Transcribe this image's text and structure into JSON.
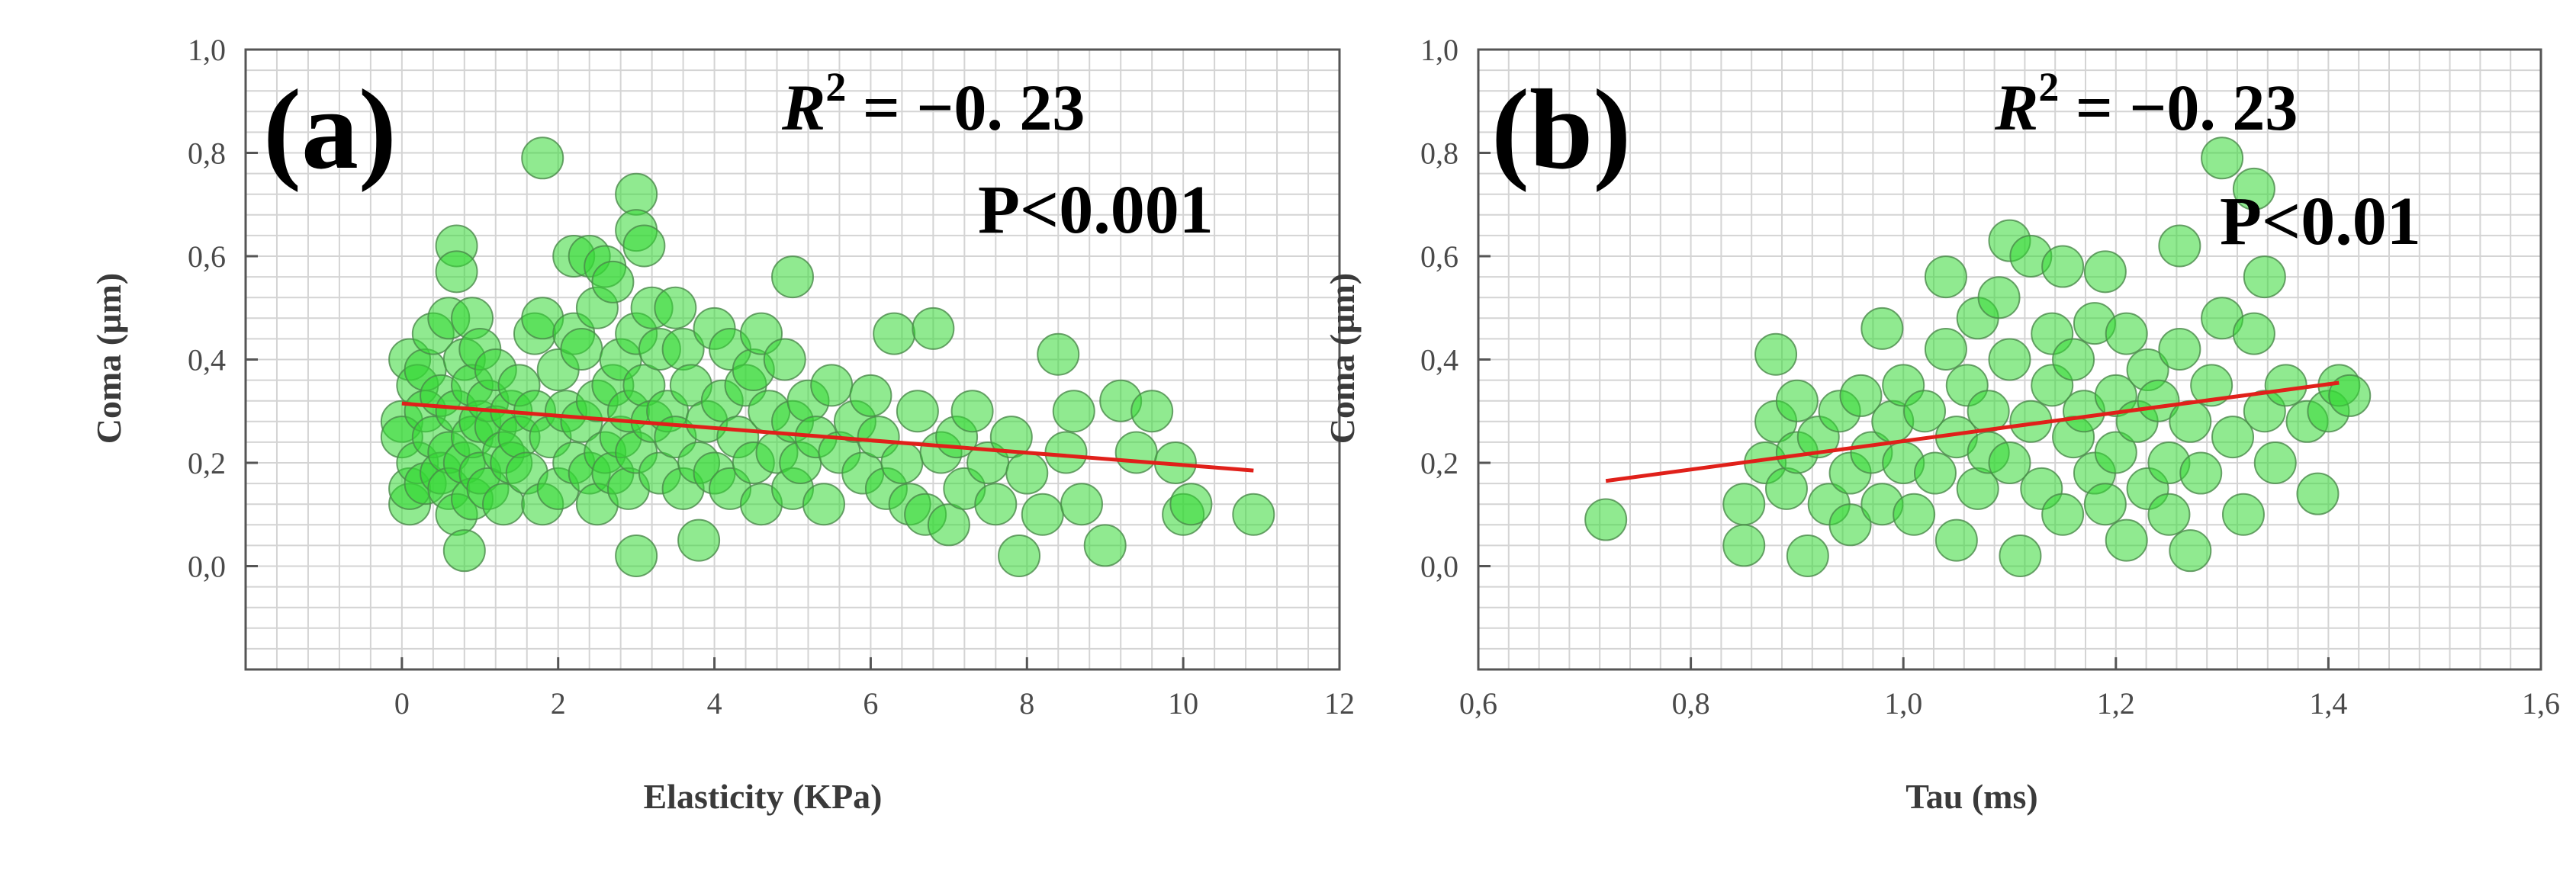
{
  "chart_data": [
    {
      "type": "scatter",
      "panel_label": "(a)",
      "xlabel": "Elasticity (KPa)",
      "ylabel": "Coma (µm)",
      "xlim": [
        -2,
        12
      ],
      "ylim": [
        -0.2,
        1.0
      ],
      "xticks": [
        "0",
        "2",
        "4",
        "6",
        "8",
        "10",
        "12"
      ],
      "xtick_values": [
        0,
        2,
        4,
        6,
        8,
        10,
        12
      ],
      "yticks": [
        "0,0",
        "0,2",
        "0,4",
        "0,6",
        "0,8",
        "1,0"
      ],
      "ytick_values": [
        0,
        0.2,
        0.4,
        0.6,
        0.8,
        1.0
      ],
      "grid": true,
      "annotations": {
        "r2_symbol": "R",
        "r2_power": "2",
        "r2_rest": " = −0. 23",
        "p": "P<0.001"
      },
      "trendline": {
        "x": [
          0,
          10.9
        ],
        "y": [
          0.315,
          0.185
        ]
      },
      "points": [
        [
          0.0,
          0.28
        ],
        [
          0.0,
          0.25
        ],
        [
          0.1,
          0.4
        ],
        [
          0.1,
          0.12
        ],
        [
          0.1,
          0.15
        ],
        [
          0.2,
          0.35
        ],
        [
          0.2,
          0.2
        ],
        [
          0.3,
          0.3
        ],
        [
          0.3,
          0.38
        ],
        [
          0.3,
          0.16
        ],
        [
          0.4,
          0.25
        ],
        [
          0.4,
          0.45
        ],
        [
          0.5,
          0.33
        ],
        [
          0.5,
          0.18
        ],
        [
          0.6,
          0.48
        ],
        [
          0.6,
          0.22
        ],
        [
          0.6,
          0.15
        ],
        [
          0.7,
          0.62
        ],
        [
          0.7,
          0.57
        ],
        [
          0.7,
          0.3
        ],
        [
          0.7,
          0.1
        ],
        [
          0.8,
          0.03
        ],
        [
          0.8,
          0.4
        ],
        [
          0.8,
          0.2
        ],
        [
          0.9,
          0.48
        ],
        [
          0.9,
          0.35
        ],
        [
          0.9,
          0.25
        ],
        [
          0.9,
          0.13
        ],
        [
          1.0,
          0.42
        ],
        [
          1.0,
          0.28
        ],
        [
          1.0,
          0.18
        ],
        [
          1.1,
          0.32
        ],
        [
          1.1,
          0.15
        ],
        [
          1.2,
          0.27
        ],
        [
          1.2,
          0.38
        ],
        [
          1.3,
          0.22
        ],
        [
          1.3,
          0.12
        ],
        [
          1.4,
          0.3
        ],
        [
          1.4,
          0.2
        ],
        [
          1.5,
          0.35
        ],
        [
          1.5,
          0.25
        ],
        [
          1.6,
          0.18
        ],
        [
          1.7,
          0.3
        ],
        [
          1.7,
          0.45
        ],
        [
          1.8,
          0.79
        ],
        [
          1.8,
          0.48
        ],
        [
          1.8,
          0.12
        ],
        [
          1.9,
          0.25
        ],
        [
          2.0,
          0.38
        ],
        [
          2.0,
          0.15
        ],
        [
          2.1,
          0.3
        ],
        [
          2.2,
          0.6
        ],
        [
          2.2,
          0.45
        ],
        [
          2.2,
          0.2
        ],
        [
          2.3,
          0.42
        ],
        [
          2.3,
          0.28
        ],
        [
          2.4,
          0.6
        ],
        [
          2.4,
          0.18
        ],
        [
          2.5,
          0.5
        ],
        [
          2.5,
          0.32
        ],
        [
          2.5,
          0.12
        ],
        [
          2.6,
          0.58
        ],
        [
          2.6,
          0.22
        ],
        [
          2.7,
          0.55
        ],
        [
          2.7,
          0.35
        ],
        [
          2.7,
          0.18
        ],
        [
          2.8,
          0.4
        ],
        [
          2.8,
          0.25
        ],
        [
          2.9,
          0.3
        ],
        [
          2.9,
          0.15
        ],
        [
          3.0,
          0.72
        ],
        [
          3.0,
          0.65
        ],
        [
          3.0,
          0.45
        ],
        [
          3.0,
          0.22
        ],
        [
          3.0,
          0.02
        ],
        [
          3.1,
          0.62
        ],
        [
          3.1,
          0.35
        ],
        [
          3.2,
          0.5
        ],
        [
          3.2,
          0.28
        ],
        [
          3.3,
          0.42
        ],
        [
          3.3,
          0.18
        ],
        [
          3.4,
          0.3
        ],
        [
          3.5,
          0.5
        ],
        [
          3.5,
          0.25
        ],
        [
          3.6,
          0.42
        ],
        [
          3.6,
          0.15
        ],
        [
          3.7,
          0.35
        ],
        [
          3.8,
          0.05
        ],
        [
          3.8,
          0.2
        ],
        [
          3.9,
          0.28
        ],
        [
          4.0,
          0.46
        ],
        [
          4.0,
          0.18
        ],
        [
          4.1,
          0.32
        ],
        [
          4.2,
          0.42
        ],
        [
          4.2,
          0.15
        ],
        [
          4.3,
          0.25
        ],
        [
          4.4,
          0.35
        ],
        [
          4.5,
          0.38
        ],
        [
          4.5,
          0.2
        ],
        [
          4.6,
          0.45
        ],
        [
          4.6,
          0.12
        ],
        [
          4.7,
          0.3
        ],
        [
          4.8,
          0.22
        ],
        [
          4.9,
          0.4
        ],
        [
          5.0,
          0.56
        ],
        [
          5.0,
          0.28
        ],
        [
          5.0,
          0.15
        ],
        [
          5.1,
          0.2
        ],
        [
          5.2,
          0.32
        ],
        [
          5.3,
          0.25
        ],
        [
          5.4,
          0.12
        ],
        [
          5.5,
          0.35
        ],
        [
          5.6,
          0.22
        ],
        [
          5.8,
          0.28
        ],
        [
          5.9,
          0.18
        ],
        [
          6.0,
          0.33
        ],
        [
          6.1,
          0.25
        ],
        [
          6.2,
          0.15
        ],
        [
          6.3,
          0.45
        ],
        [
          6.4,
          0.2
        ],
        [
          6.5,
          0.12
        ],
        [
          6.6,
          0.3
        ],
        [
          6.7,
          0.1
        ],
        [
          6.8,
          0.46
        ],
        [
          6.9,
          0.22
        ],
        [
          7.0,
          0.08
        ],
        [
          7.1,
          0.25
        ],
        [
          7.2,
          0.15
        ],
        [
          7.3,
          0.3
        ],
        [
          7.5,
          0.2
        ],
        [
          7.6,
          0.12
        ],
        [
          7.8,
          0.25
        ],
        [
          7.9,
          0.02
        ],
        [
          8.0,
          0.18
        ],
        [
          8.2,
          0.1
        ],
        [
          8.4,
          0.41
        ],
        [
          8.5,
          0.22
        ],
        [
          8.6,
          0.3
        ],
        [
          8.7,
          0.12
        ],
        [
          9.0,
          0.04
        ],
        [
          9.2,
          0.32
        ],
        [
          9.4,
          0.22
        ],
        [
          9.6,
          0.3
        ],
        [
          9.9,
          0.2
        ],
        [
          10.0,
          0.1
        ],
        [
          10.1,
          0.12
        ],
        [
          10.9,
          0.1
        ]
      ]
    },
    {
      "type": "scatter",
      "panel_label": "(b)",
      "xlabel": "Tau (ms)",
      "ylabel": "Coma (µm)",
      "xlim": [
        0.6,
        1.6
      ],
      "ylim": [
        -0.2,
        1.0
      ],
      "xticks": [
        "0,6",
        "0,8",
        "1,0",
        "1,2",
        "1,4",
        "1,6"
      ],
      "xtick_values": [
        0.6,
        0.8,
        1.0,
        1.2,
        1.4,
        1.6
      ],
      "yticks": [
        "0,0",
        "0,2",
        "0,4",
        "0,6",
        "0,8",
        "1,0"
      ],
      "ytick_values": [
        0,
        0.2,
        0.4,
        0.6,
        0.8,
        1.0
      ],
      "grid": true,
      "annotations": {
        "r2_symbol": "R",
        "r2_power": "2",
        "r2_rest": " = −0. 23",
        "p": "P<0.01"
      },
      "trendline": {
        "x": [
          0.72,
          1.41
        ],
        "y": [
          0.165,
          0.355
        ]
      },
      "points": [
        [
          0.72,
          0.09
        ],
        [
          0.85,
          0.12
        ],
        [
          0.85,
          0.04
        ],
        [
          0.87,
          0.2
        ],
        [
          0.88,
          0.41
        ],
        [
          0.88,
          0.28
        ],
        [
          0.89,
          0.15
        ],
        [
          0.9,
          0.32
        ],
        [
          0.9,
          0.22
        ],
        [
          0.91,
          0.02
        ],
        [
          0.92,
          0.25
        ],
        [
          0.93,
          0.12
        ],
        [
          0.94,
          0.3
        ],
        [
          0.95,
          0.18
        ],
        [
          0.95,
          0.08
        ],
        [
          0.96,
          0.33
        ],
        [
          0.97,
          0.22
        ],
        [
          0.98,
          0.46
        ],
        [
          0.98,
          0.12
        ],
        [
          0.99,
          0.28
        ],
        [
          1.0,
          0.2
        ],
        [
          1.0,
          0.35
        ],
        [
          1.01,
          0.1
        ],
        [
          1.02,
          0.3
        ],
        [
          1.03,
          0.18
        ],
        [
          1.04,
          0.56
        ],
        [
          1.04,
          0.42
        ],
        [
          1.05,
          0.25
        ],
        [
          1.05,
          0.05
        ],
        [
          1.06,
          0.35
        ],
        [
          1.07,
          0.48
        ],
        [
          1.07,
          0.15
        ],
        [
          1.08,
          0.3
        ],
        [
          1.08,
          0.22
        ],
        [
          1.09,
          0.52
        ],
        [
          1.1,
          0.63
        ],
        [
          1.1,
          0.4
        ],
        [
          1.1,
          0.2
        ],
        [
          1.11,
          0.02
        ],
        [
          1.12,
          0.6
        ],
        [
          1.12,
          0.28
        ],
        [
          1.13,
          0.15
        ],
        [
          1.14,
          0.45
        ],
        [
          1.14,
          0.35
        ],
        [
          1.15,
          0.58
        ],
        [
          1.15,
          0.1
        ],
        [
          1.16,
          0.25
        ],
        [
          1.16,
          0.4
        ],
        [
          1.17,
          0.3
        ],
        [
          1.18,
          0.18
        ],
        [
          1.18,
          0.47
        ],
        [
          1.19,
          0.57
        ],
        [
          1.19,
          0.12
        ],
        [
          1.2,
          0.33
        ],
        [
          1.2,
          0.22
        ],
        [
          1.21,
          0.45
        ],
        [
          1.21,
          0.05
        ],
        [
          1.22,
          0.28
        ],
        [
          1.23,
          0.38
        ],
        [
          1.23,
          0.15
        ],
        [
          1.24,
          0.32
        ],
        [
          1.25,
          0.2
        ],
        [
          1.25,
          0.1
        ],
        [
          1.26,
          0.62
        ],
        [
          1.26,
          0.42
        ],
        [
          1.27,
          0.28
        ],
        [
          1.27,
          0.03
        ],
        [
          1.28,
          0.18
        ],
        [
          1.29,
          0.35
        ],
        [
          1.3,
          0.79
        ],
        [
          1.3,
          0.48
        ],
        [
          1.31,
          0.25
        ],
        [
          1.32,
          0.1
        ],
        [
          1.33,
          0.73
        ],
        [
          1.33,
          0.45
        ],
        [
          1.34,
          0.56
        ],
        [
          1.34,
          0.3
        ],
        [
          1.35,
          0.2
        ],
        [
          1.36,
          0.35
        ],
        [
          1.38,
          0.28
        ],
        [
          1.39,
          0.14
        ],
        [
          1.4,
          0.3
        ],
        [
          1.41,
          0.35
        ],
        [
          1.42,
          0.33
        ]
      ]
    }
  ]
}
